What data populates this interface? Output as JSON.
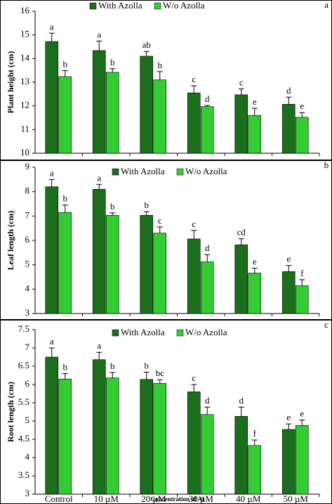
{
  "chart_data": [
    {
      "type": "bar",
      "panel_label": "a",
      "ylabel": "Plant height (cm)",
      "categories": [
        null,
        null,
        null,
        null,
        null,
        null
      ],
      "ylim": [
        10,
        16
      ],
      "yticks": [
        10,
        11,
        12,
        13,
        14,
        15,
        16
      ],
      "series": [
        {
          "name": "With Azolla",
          "color": "#1b6e1b",
          "values": [
            14.72,
            14.34,
            14.1,
            12.55,
            12.47,
            12.07
          ],
          "errors": [
            0.35,
            0.4,
            0.2,
            0.3,
            0.25,
            0.3
          ],
          "letters": [
            "a",
            "a",
            "ab",
            "c",
            "c",
            "d"
          ]
        },
        {
          "name": "W/o Azolla",
          "color": "#33cc33",
          "values": [
            13.24,
            13.42,
            13.1,
            11.97,
            11.6,
            11.52
          ],
          "errors": [
            0.25,
            0.15,
            0.35,
            0.05,
            0.3,
            0.2
          ],
          "letters": [
            "b",
            "b",
            "b",
            "d",
            "e",
            "e"
          ]
        }
      ]
    },
    {
      "type": "bar",
      "panel_label": "b",
      "ylabel": "Leaf length (cm)",
      "categories": [
        null,
        null,
        null,
        null,
        null,
        null
      ],
      "ylim": [
        3,
        9
      ],
      "yticks": [
        3,
        4,
        5,
        6,
        7,
        8,
        9
      ],
      "series": [
        {
          "name": "With Azolla",
          "color": "#1b6e1b",
          "values": [
            8.2,
            8.1,
            7.03,
            6.06,
            5.82,
            4.72
          ],
          "errors": [
            0.3,
            0.2,
            0.15,
            0.35,
            0.25,
            0.25
          ],
          "letters": [
            "a",
            "a",
            "b",
            "c",
            "cd",
            "e"
          ]
        },
        {
          "name": "W/o Azolla",
          "color": "#33cc33",
          "values": [
            7.15,
            7.03,
            6.3,
            5.12,
            4.66,
            4.14
          ],
          "errors": [
            0.3,
            0.1,
            0.25,
            0.3,
            0.2,
            0.25
          ],
          "letters": [
            "b",
            "b",
            "c",
            "d",
            "e",
            "f"
          ]
        }
      ]
    },
    {
      "type": "bar",
      "panel_label": "c",
      "ylabel": "Root length (cm)",
      "xlabel": "Concentration of Al",
      "categories": [
        "Control",
        "10 µM",
        "20 µM",
        "30 µM",
        "40 µM",
        "50 µM"
      ],
      "ylim": [
        3,
        7.5
      ],
      "yticks": [
        3,
        3.5,
        4,
        4.5,
        5,
        5.5,
        6,
        6.5,
        7,
        7.5
      ],
      "series": [
        {
          "name": "With Azolla",
          "color": "#1b6e1b",
          "values": [
            6.75,
            6.68,
            6.14,
            5.8,
            5.13,
            4.77
          ],
          "errors": [
            0.25,
            0.2,
            0.2,
            0.2,
            0.25,
            0.15
          ],
          "letters": [
            "a",
            "a",
            "b",
            "c",
            "d",
            "e"
          ]
        },
        {
          "name": "W/o Azolla",
          "color": "#33cc33",
          "values": [
            6.15,
            6.18,
            6.03,
            5.18,
            4.33,
            4.88
          ],
          "errors": [
            0.15,
            0.15,
            0.1,
            0.2,
            0.15,
            0.15
          ],
          "letters": [
            "b",
            "b",
            "bc",
            "d",
            "f",
            "e"
          ]
        }
      ]
    }
  ]
}
